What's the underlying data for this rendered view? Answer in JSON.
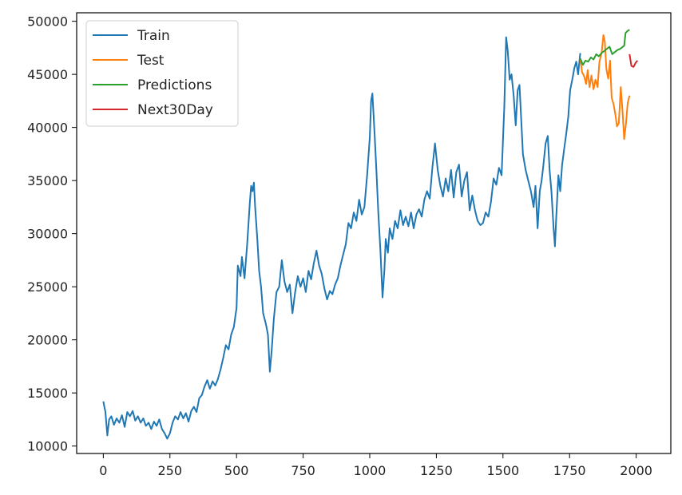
{
  "chart_data": {
    "type": "line",
    "title": "",
    "xlabel": "",
    "ylabel": "",
    "xlim": [
      -100,
      2130
    ],
    "ylim": [
      9300,
      50800
    ],
    "x_ticks": [
      0,
      250,
      500,
      750,
      1000,
      1250,
      1500,
      1750,
      2000
    ],
    "x_tick_labels": [
      "0",
      "250",
      "500",
      "750",
      "1000",
      "1250",
      "1500",
      "1750",
      "2000"
    ],
    "y_ticks": [
      10000,
      15000,
      20000,
      25000,
      30000,
      35000,
      40000,
      45000,
      50000
    ],
    "y_tick_labels": [
      "10000",
      "15000",
      "20000",
      "25000",
      "30000",
      "35000",
      "40000",
      "45000",
      "50000"
    ],
    "grid": false,
    "legend_position": "top-left",
    "series": [
      {
        "name": "Train",
        "color": "#1f77b4",
        "points": [
          [
            0,
            14200
          ],
          [
            8,
            13200
          ],
          [
            15,
            11000
          ],
          [
            22,
            12500
          ],
          [
            30,
            12800
          ],
          [
            40,
            12000
          ],
          [
            50,
            12600
          ],
          [
            60,
            12200
          ],
          [
            70,
            12900
          ],
          [
            80,
            11800
          ],
          [
            90,
            13200
          ],
          [
            100,
            12800
          ],
          [
            110,
            13300
          ],
          [
            120,
            12400
          ],
          [
            130,
            12800
          ],
          [
            140,
            12200
          ],
          [
            150,
            12600
          ],
          [
            160,
            11900
          ],
          [
            170,
            12200
          ],
          [
            180,
            11600
          ],
          [
            190,
            12300
          ],
          [
            200,
            11900
          ],
          [
            210,
            12500
          ],
          [
            220,
            11600
          ],
          [
            230,
            11200
          ],
          [
            240,
            10700
          ],
          [
            250,
            11200
          ],
          [
            260,
            12200
          ],
          [
            270,
            12800
          ],
          [
            280,
            12500
          ],
          [
            290,
            13200
          ],
          [
            300,
            12600
          ],
          [
            310,
            13100
          ],
          [
            320,
            12300
          ],
          [
            330,
            13300
          ],
          [
            340,
            13700
          ],
          [
            350,
            13200
          ],
          [
            360,
            14500
          ],
          [
            370,
            14800
          ],
          [
            380,
            15600
          ],
          [
            390,
            16200
          ],
          [
            400,
            15400
          ],
          [
            410,
            16100
          ],
          [
            420,
            15700
          ],
          [
            430,
            16300
          ],
          [
            440,
            17200
          ],
          [
            450,
            18300
          ],
          [
            460,
            19500
          ],
          [
            470,
            19100
          ],
          [
            480,
            20500
          ],
          [
            490,
            21200
          ],
          [
            500,
            23000
          ],
          [
            505,
            27000
          ],
          [
            515,
            26000
          ],
          [
            520,
            27800
          ],
          [
            530,
            25800
          ],
          [
            540,
            29000
          ],
          [
            550,
            33000
          ],
          [
            555,
            34500
          ],
          [
            560,
            34000
          ],
          [
            565,
            34800
          ],
          [
            570,
            32500
          ],
          [
            578,
            29500
          ],
          [
            585,
            26500
          ],
          [
            592,
            25000
          ],
          [
            600,
            22500
          ],
          [
            610,
            21500
          ],
          [
            618,
            20500
          ],
          [
            625,
            17000
          ],
          [
            632,
            19000
          ],
          [
            640,
            22000
          ],
          [
            650,
            24500
          ],
          [
            660,
            25000
          ],
          [
            670,
            27500
          ],
          [
            680,
            25500
          ],
          [
            690,
            24500
          ],
          [
            700,
            25200
          ],
          [
            710,
            22500
          ],
          [
            720,
            24500
          ],
          [
            730,
            26000
          ],
          [
            740,
            25000
          ],
          [
            750,
            25800
          ],
          [
            760,
            24500
          ],
          [
            770,
            26500
          ],
          [
            780,
            25700
          ],
          [
            790,
            27200
          ],
          [
            800,
            28400
          ],
          [
            810,
            27000
          ],
          [
            820,
            26200
          ],
          [
            830,
            24800
          ],
          [
            840,
            23800
          ],
          [
            850,
            24600
          ],
          [
            860,
            24300
          ],
          [
            870,
            25200
          ],
          [
            880,
            25800
          ],
          [
            890,
            27000
          ],
          [
            900,
            28000
          ],
          [
            910,
            29000
          ],
          [
            920,
            31000
          ],
          [
            930,
            30500
          ],
          [
            940,
            32000
          ],
          [
            950,
            31200
          ],
          [
            960,
            33200
          ],
          [
            970,
            31800
          ],
          [
            980,
            32500
          ],
          [
            990,
            35500
          ],
          [
            1000,
            39000
          ],
          [
            1005,
            42500
          ],
          [
            1010,
            43200
          ],
          [
            1018,
            39500
          ],
          [
            1025,
            36000
          ],
          [
            1032,
            32000
          ],
          [
            1040,
            28500
          ],
          [
            1048,
            24000
          ],
          [
            1055,
            26500
          ],
          [
            1060,
            29500
          ],
          [
            1068,
            28200
          ],
          [
            1075,
            30500
          ],
          [
            1085,
            29500
          ],
          [
            1095,
            31200
          ],
          [
            1105,
            30500
          ],
          [
            1115,
            32200
          ],
          [
            1125,
            30800
          ],
          [
            1135,
            31600
          ],
          [
            1145,
            30700
          ],
          [
            1155,
            32000
          ],
          [
            1165,
            30500
          ],
          [
            1175,
            31800
          ],
          [
            1185,
            32300
          ],
          [
            1195,
            31600
          ],
          [
            1205,
            33200
          ],
          [
            1215,
            34000
          ],
          [
            1225,
            33300
          ],
          [
            1235,
            36200
          ],
          [
            1245,
            38500
          ],
          [
            1255,
            36000
          ],
          [
            1265,
            34500
          ],
          [
            1275,
            33500
          ],
          [
            1285,
            35200
          ],
          [
            1295,
            34000
          ],
          [
            1305,
            36000
          ],
          [
            1315,
            33400
          ],
          [
            1325,
            35800
          ],
          [
            1335,
            36500
          ],
          [
            1345,
            33500
          ],
          [
            1355,
            35000
          ],
          [
            1365,
            35800
          ],
          [
            1375,
            32200
          ],
          [
            1385,
            33600
          ],
          [
            1395,
            32200
          ],
          [
            1405,
            31200
          ],
          [
            1415,
            30800
          ],
          [
            1425,
            31000
          ],
          [
            1435,
            32000
          ],
          [
            1445,
            31600
          ],
          [
            1455,
            33000
          ],
          [
            1465,
            35200
          ],
          [
            1475,
            34600
          ],
          [
            1485,
            36200
          ],
          [
            1495,
            35500
          ],
          [
            1505,
            42000
          ],
          [
            1512,
            48500
          ],
          [
            1518,
            47200
          ],
          [
            1525,
            44500
          ],
          [
            1532,
            45000
          ],
          [
            1540,
            43000
          ],
          [
            1548,
            40200
          ],
          [
            1555,
            43500
          ],
          [
            1562,
            44000
          ],
          [
            1568,
            41000
          ],
          [
            1575,
            37500
          ],
          [
            1585,
            36000
          ],
          [
            1595,
            35000
          ],
          [
            1605,
            34000
          ],
          [
            1615,
            32500
          ],
          [
            1622,
            34500
          ],
          [
            1630,
            30500
          ],
          [
            1638,
            34000
          ],
          [
            1645,
            35000
          ],
          [
            1652,
            36500
          ],
          [
            1660,
            38500
          ],
          [
            1668,
            39200
          ],
          [
            1675,
            36000
          ],
          [
            1682,
            34000
          ],
          [
            1690,
            30500
          ],
          [
            1695,
            28800
          ],
          [
            1700,
            31500
          ],
          [
            1708,
            35500
          ],
          [
            1715,
            34000
          ],
          [
            1722,
            36500
          ],
          [
            1730,
            38000
          ],
          [
            1738,
            39500
          ],
          [
            1745,
            41000
          ],
          [
            1752,
            43500
          ],
          [
            1760,
            44500
          ],
          [
            1768,
            45600
          ],
          [
            1775,
            46200
          ],
          [
            1782,
            45000
          ],
          [
            1790,
            47000
          ]
        ]
      },
      {
        "name": "Test",
        "color": "#ff7f0e",
        "points": [
          [
            1790,
            46500
          ],
          [
            1797,
            45200
          ],
          [
            1805,
            44800
          ],
          [
            1812,
            44100
          ],
          [
            1818,
            45400
          ],
          [
            1825,
            43800
          ],
          [
            1832,
            44900
          ],
          [
            1840,
            43600
          ],
          [
            1847,
            44500
          ],
          [
            1855,
            43800
          ],
          [
            1862,
            46200
          ],
          [
            1870,
            47000
          ],
          [
            1877,
            48700
          ],
          [
            1882,
            48100
          ],
          [
            1888,
            45500
          ],
          [
            1895,
            44600
          ],
          [
            1902,
            46300
          ],
          [
            1908,
            42800
          ],
          [
            1915,
            42200
          ],
          [
            1922,
            41200
          ],
          [
            1928,
            40100
          ],
          [
            1935,
            40400
          ],
          [
            1942,
            43800
          ],
          [
            1948,
            41800
          ],
          [
            1955,
            38900
          ],
          [
            1962,
            40400
          ],
          [
            1968,
            42300
          ],
          [
            1975,
            43000
          ]
        ]
      },
      {
        "name": "Predictions",
        "color": "#2ca02c",
        "points": [
          [
            1790,
            46500
          ],
          [
            1800,
            45900
          ],
          [
            1810,
            46300
          ],
          [
            1820,
            46200
          ],
          [
            1830,
            46600
          ],
          [
            1840,
            46400
          ],
          [
            1850,
            46900
          ],
          [
            1860,
            46700
          ],
          [
            1870,
            47000
          ],
          [
            1880,
            47200
          ],
          [
            1890,
            47400
          ],
          [
            1900,
            47600
          ],
          [
            1910,
            46900
          ],
          [
            1920,
            47100
          ],
          [
            1930,
            47300
          ],
          [
            1940,
            47400
          ],
          [
            1950,
            47600
          ],
          [
            1955,
            47700
          ],
          [
            1960,
            48900
          ],
          [
            1968,
            49100
          ],
          [
            1975,
            49200
          ]
        ]
      },
      {
        "name": "Next30Day",
        "color": "#d62728",
        "points": [
          [
            1975,
            46900
          ],
          [
            1982,
            45800
          ],
          [
            1990,
            45700
          ],
          [
            1998,
            46100
          ],
          [
            2005,
            46300
          ]
        ]
      }
    ]
  }
}
